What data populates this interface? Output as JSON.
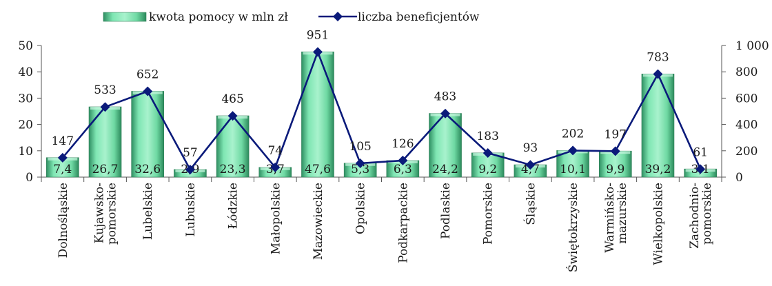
{
  "chart_data": {
    "type": "bar+line",
    "categories": [
      [
        "Dolnośląskie"
      ],
      [
        "Kujawsko-",
        "pomorskie"
      ],
      [
        "Lubelskie"
      ],
      [
        "Lubuskie"
      ],
      [
        "Łódzkie"
      ],
      [
        "Małopolskie"
      ],
      [
        "Mazowieckie"
      ],
      [
        "Opolskie"
      ],
      [
        "Podkarpackie"
      ],
      [
        "Podlaskie"
      ],
      [
        "Pomorskie"
      ],
      [
        "Śląskie"
      ],
      [
        "Świętokrzyskie"
      ],
      [
        "Warmińsko-",
        "mazurskie"
      ],
      [
        "Wielkopolskie"
      ],
      [
        "Zachodnio-",
        "pomorskie"
      ]
    ],
    "series": [
      {
        "name": "kwota pomocy w mln zł",
        "type": "bar",
        "axis": "left",
        "values": [
          7.4,
          26.7,
          32.6,
          2.9,
          23.3,
          3.7,
          47.6,
          5.3,
          6.3,
          24.2,
          9.2,
          4.7,
          10.1,
          9.9,
          39.2,
          3.1
        ],
        "labels": [
          "7,4",
          "26,7",
          "32,6",
          "2,9",
          "23,3",
          "3,7",
          "47,6",
          "5,3",
          "6,3",
          "24,2",
          "9,2",
          "4,7",
          "10,1",
          "9,9",
          "39,2",
          "3,1"
        ],
        "color": "#6ee0a8"
      },
      {
        "name": "liczba beneficjentów",
        "type": "line",
        "axis": "right",
        "values": [
          147,
          533,
          652,
          57,
          465,
          74,
          951,
          105,
          126,
          483,
          183,
          93,
          202,
          197,
          783,
          61
        ],
        "labels": [
          "147",
          "533",
          "652",
          "57",
          "465",
          "74",
          "951",
          "105",
          "126",
          "483",
          "183",
          "93",
          "202",
          "197",
          "783",
          "61"
        ],
        "color": "#0a1a7a"
      }
    ],
    "y_left": {
      "min": 0,
      "max": 50,
      "ticks": [
        0,
        10,
        20,
        30,
        40,
        50
      ],
      "tick_labels": [
        "0",
        "10",
        "20",
        "30",
        "40",
        "50"
      ]
    },
    "y_right": {
      "min": 0,
      "max": 1000,
      "ticks": [
        0,
        200,
        400,
        600,
        800,
        1000
      ],
      "tick_labels": [
        "0",
        "200",
        "400",
        "600",
        "800",
        "1 000"
      ]
    },
    "grid": false,
    "legend_position": "top"
  }
}
